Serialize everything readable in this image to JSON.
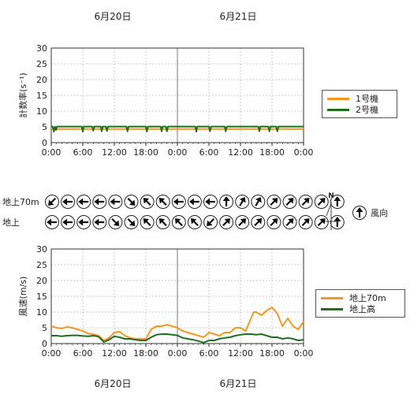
{
  "dates": {
    "top": [
      "6月20日",
      "6月21日"
    ],
    "bottom": [
      "6月20日",
      "6月21日"
    ]
  },
  "colors": {
    "orange": "#f5961e",
    "green": "#1e6e1e",
    "grid": "#bbbbbb"
  },
  "wind_panel": {
    "row_labels": [
      "地上70m",
      "地上"
    ],
    "north_label": "N",
    "legend_label": "風向"
  },
  "chart_data": [
    {
      "type": "line",
      "ylabel": "計数率(s⁻¹)",
      "ylim": [
        0,
        30
      ],
      "yticks": [
        0,
        5,
        10,
        15,
        20,
        25,
        30
      ],
      "xticks": [
        "0:00",
        "6:00",
        "12:00",
        "18:00",
        "0:00",
        "6:00",
        "12:00",
        "18:00",
        "0:00"
      ],
      "xlim_hours": [
        0,
        48
      ],
      "grid": true,
      "legend": "right",
      "series": [
        {
          "name": "1号機",
          "color": "#f5961e",
          "x": [
            0,
            48
          ],
          "y": [
            4.3,
            4.3
          ]
        },
        {
          "name": "2号機",
          "color": "#1e6e1e",
          "x": [
            0,
            0.3,
            0.5,
            0.7,
            0.9,
            1.1,
            5.8,
            6.0,
            6.2,
            7.8,
            8.0,
            8.2,
            9.4,
            9.6,
            9.8,
            10.4,
            10.6,
            10.8,
            14.3,
            14.5,
            14.7,
            18.0,
            18.2,
            18.4,
            20.8,
            21.0,
            21.2,
            21.8,
            22.0,
            22.2,
            27.4,
            27.6,
            27.8,
            30.0,
            30.2,
            30.4,
            33.0,
            33.2,
            33.4,
            39.4,
            39.6,
            39.8,
            41.3,
            41.5,
            41.7,
            42.8,
            43.0,
            43.2,
            48
          ],
          "y": [
            5.1,
            5.1,
            3.5,
            5.1,
            4.0,
            5.1,
            5.1,
            3.5,
            5.1,
            5.1,
            3.8,
            5.1,
            5.1,
            3.6,
            5.1,
            5.1,
            3.7,
            5.1,
            5.1,
            3.6,
            5.1,
            5.1,
            3.5,
            5.1,
            5.1,
            3.6,
            5.1,
            5.1,
            3.6,
            5.1,
            5.1,
            3.5,
            5.1,
            5.1,
            3.6,
            5.1,
            5.1,
            3.6,
            5.1,
            5.1,
            3.6,
            5.1,
            5.1,
            3.6,
            5.1,
            5.1,
            3.6,
            5.1,
            5.1
          ]
        }
      ]
    },
    {
      "type": "wind_direction",
      "row_labels": [
        "地上70m",
        "地上"
      ],
      "rows": [
        [
          225,
          270,
          270,
          270,
          270,
          135,
          315,
          315,
          270,
          270,
          270,
          0,
          30,
          30,
          45,
          45,
          45,
          45,
          0
        ],
        [
          270,
          270,
          270,
          270,
          135,
          135,
          315,
          315,
          315,
          315,
          225,
          45,
          45,
          45,
          45,
          45,
          45,
          45,
          0
        ]
      ],
      "legend": "風向"
    },
    {
      "type": "line",
      "ylabel": "風速(m/s)",
      "ylim": [
        0,
        30
      ],
      "yticks": [
        0,
        5,
        10,
        15,
        20,
        25,
        30
      ],
      "xticks": [
        "0:00",
        "6:00",
        "12:00",
        "18:00",
        "0:00",
        "6:00",
        "12:00",
        "18:00",
        "0:00"
      ],
      "xlim_hours": [
        0,
        48
      ],
      "grid": true,
      "legend": "right",
      "series": [
        {
          "name": "地上70m",
          "color": "#f5961e",
          "x": [
            0,
            1,
            2,
            3,
            4,
            5,
            6,
            7,
            8,
            9,
            10,
            11,
            12,
            13,
            14,
            15,
            16,
            17,
            18,
            19,
            20,
            21,
            22,
            23,
            24,
            25,
            26,
            27,
            28,
            29,
            30,
            31,
            32,
            33,
            34,
            35,
            36,
            37,
            38,
            38.5,
            39,
            40,
            41,
            42,
            43,
            44,
            45,
            46,
            47,
            48
          ],
          "y": [
            5.5,
            5.0,
            4.8,
            5.3,
            5.0,
            4.5,
            4.0,
            3.2,
            3.0,
            2.5,
            1.0,
            1.8,
            3.5,
            3.8,
            2.5,
            1.8,
            1.5,
            1.5,
            1.5,
            4.5,
            5.5,
            5.5,
            6.0,
            5.5,
            5.0,
            4.0,
            3.5,
            3.0,
            2.5,
            2.0,
            3.5,
            3.0,
            2.5,
            3.5,
            3.5,
            5.0,
            5.0,
            4.0,
            8.0,
            10.0,
            10.0,
            9.0,
            10.5,
            11.5,
            9.5,
            5.5,
            8.0,
            5.5,
            4.5,
            7.0
          ]
        },
        {
          "name": "地上高",
          "color": "#1e6e1e",
          "x": [
            0,
            1,
            2,
            3,
            4,
            5,
            6,
            7,
            8,
            9,
            10,
            11,
            12,
            13,
            14,
            15,
            16,
            17,
            18,
            19,
            20,
            21,
            22,
            23,
            24,
            25,
            26,
            27,
            28,
            29,
            30,
            31,
            32,
            33,
            34,
            35,
            36,
            37,
            38,
            39,
            40,
            41,
            42,
            43,
            44,
            45,
            46,
            47,
            48
          ],
          "y": [
            2.5,
            2.5,
            2.3,
            2.5,
            2.6,
            2.6,
            2.4,
            2.3,
            2.5,
            2.2,
            0.5,
            1.2,
            2.3,
            2.0,
            1.5,
            1.5,
            1.2,
            1.0,
            1.0,
            2.0,
            2.8,
            3.0,
            3.0,
            2.8,
            2.6,
            1.8,
            1.5,
            1.2,
            0.8,
            0.3,
            1.0,
            1.0,
            1.5,
            1.8,
            2.0,
            2.5,
            2.8,
            3.0,
            3.0,
            2.8,
            3.0,
            2.5,
            2.0,
            2.0,
            1.5,
            1.8,
            1.5,
            1.0,
            1.2
          ]
        }
      ]
    }
  ]
}
